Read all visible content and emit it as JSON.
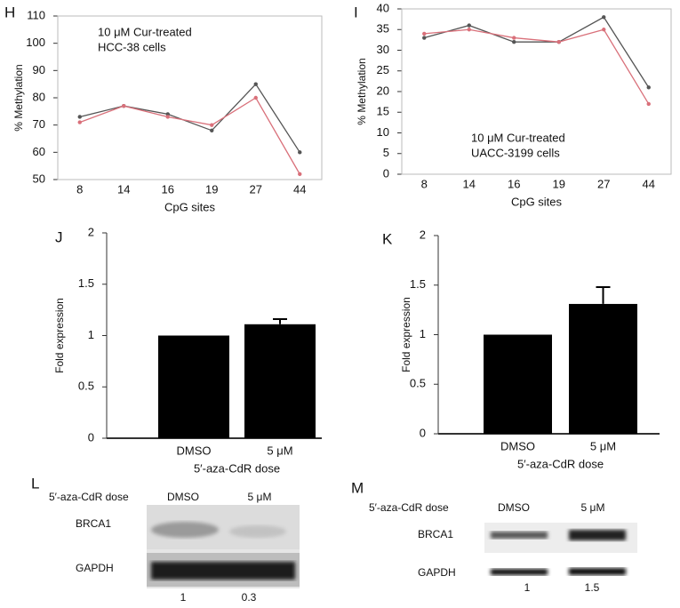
{
  "chart_data": [
    {
      "type": "line",
      "panel": "H",
      "annotation": [
        "10 μM Cur-treated",
        "HCC-38 cells"
      ],
      "x_label": "CpG sites",
      "y_label": "% Methylation",
      "categories": [
        "8",
        "14",
        "16",
        "19",
        "27",
        "44"
      ],
      "series": [
        {
          "color": "#555555",
          "values": [
            73,
            77,
            74,
            68,
            85,
            60
          ]
        },
        {
          "color": "#d9707a",
          "values": [
            71,
            77,
            73,
            70,
            80,
            52
          ]
        }
      ],
      "ylim": [
        50,
        110
      ],
      "yticks": [
        50,
        60,
        70,
        80,
        90,
        100,
        110
      ]
    },
    {
      "type": "line",
      "panel": "I",
      "annotation": [
        "10 μM Cur-treated",
        "UACC-3199 cells"
      ],
      "x_label": "CpG sites",
      "y_label": "% Methylation",
      "categories": [
        "8",
        "14",
        "16",
        "19",
        "27",
        "44"
      ],
      "series": [
        {
          "color": "#555555",
          "values": [
            33,
            36,
            32,
            32,
            38,
            21
          ]
        },
        {
          "color": "#d9707a",
          "values": [
            34,
            35,
            33,
            32,
            35,
            17
          ]
        }
      ],
      "ylim": [
        0,
        40
      ],
      "yticks": [
        0,
        5,
        10,
        15,
        20,
        25,
        30,
        35,
        40
      ]
    },
    {
      "type": "bar",
      "panel": "J",
      "x_label": "5′-aza-CdR dose",
      "y_label": "Fold expression",
      "categories": [
        "DMSO",
        "5 μM"
      ],
      "values": [
        1,
        1.11
      ],
      "errors": [
        null,
        0.05
      ],
      "color": "#000000",
      "ylim": [
        0,
        2
      ],
      "yticks": [
        0,
        0.5,
        1,
        1.5,
        2
      ]
    },
    {
      "type": "bar",
      "panel": "K",
      "x_label": "5′-aza-CdR dose",
      "y_label": "Fold expression",
      "categories": [
        "DMSO",
        "5 μM"
      ],
      "values": [
        1,
        1.31
      ],
      "errors": [
        null,
        0.17
      ],
      "color": "#000000",
      "ylim": [
        0,
        2
      ],
      "yticks": [
        0,
        0.5,
        1,
        1.5,
        2
      ]
    }
  ],
  "blots": [
    {
      "panel": "L",
      "dose_label": "5′-aza-CdR dose",
      "lanes": [
        "DMSO",
        "5 μM"
      ],
      "bands": [
        "BRCA1",
        "GAPDH"
      ],
      "ratios": [
        "1",
        "0.3"
      ]
    },
    {
      "panel": "M",
      "dose_label": "5′-aza-CdR dose",
      "lanes": [
        "DMSO",
        "5 μM"
      ],
      "bands": [
        "BRCA1",
        "GAPDH"
      ],
      "ratios": [
        "1",
        "1.5"
      ]
    }
  ]
}
